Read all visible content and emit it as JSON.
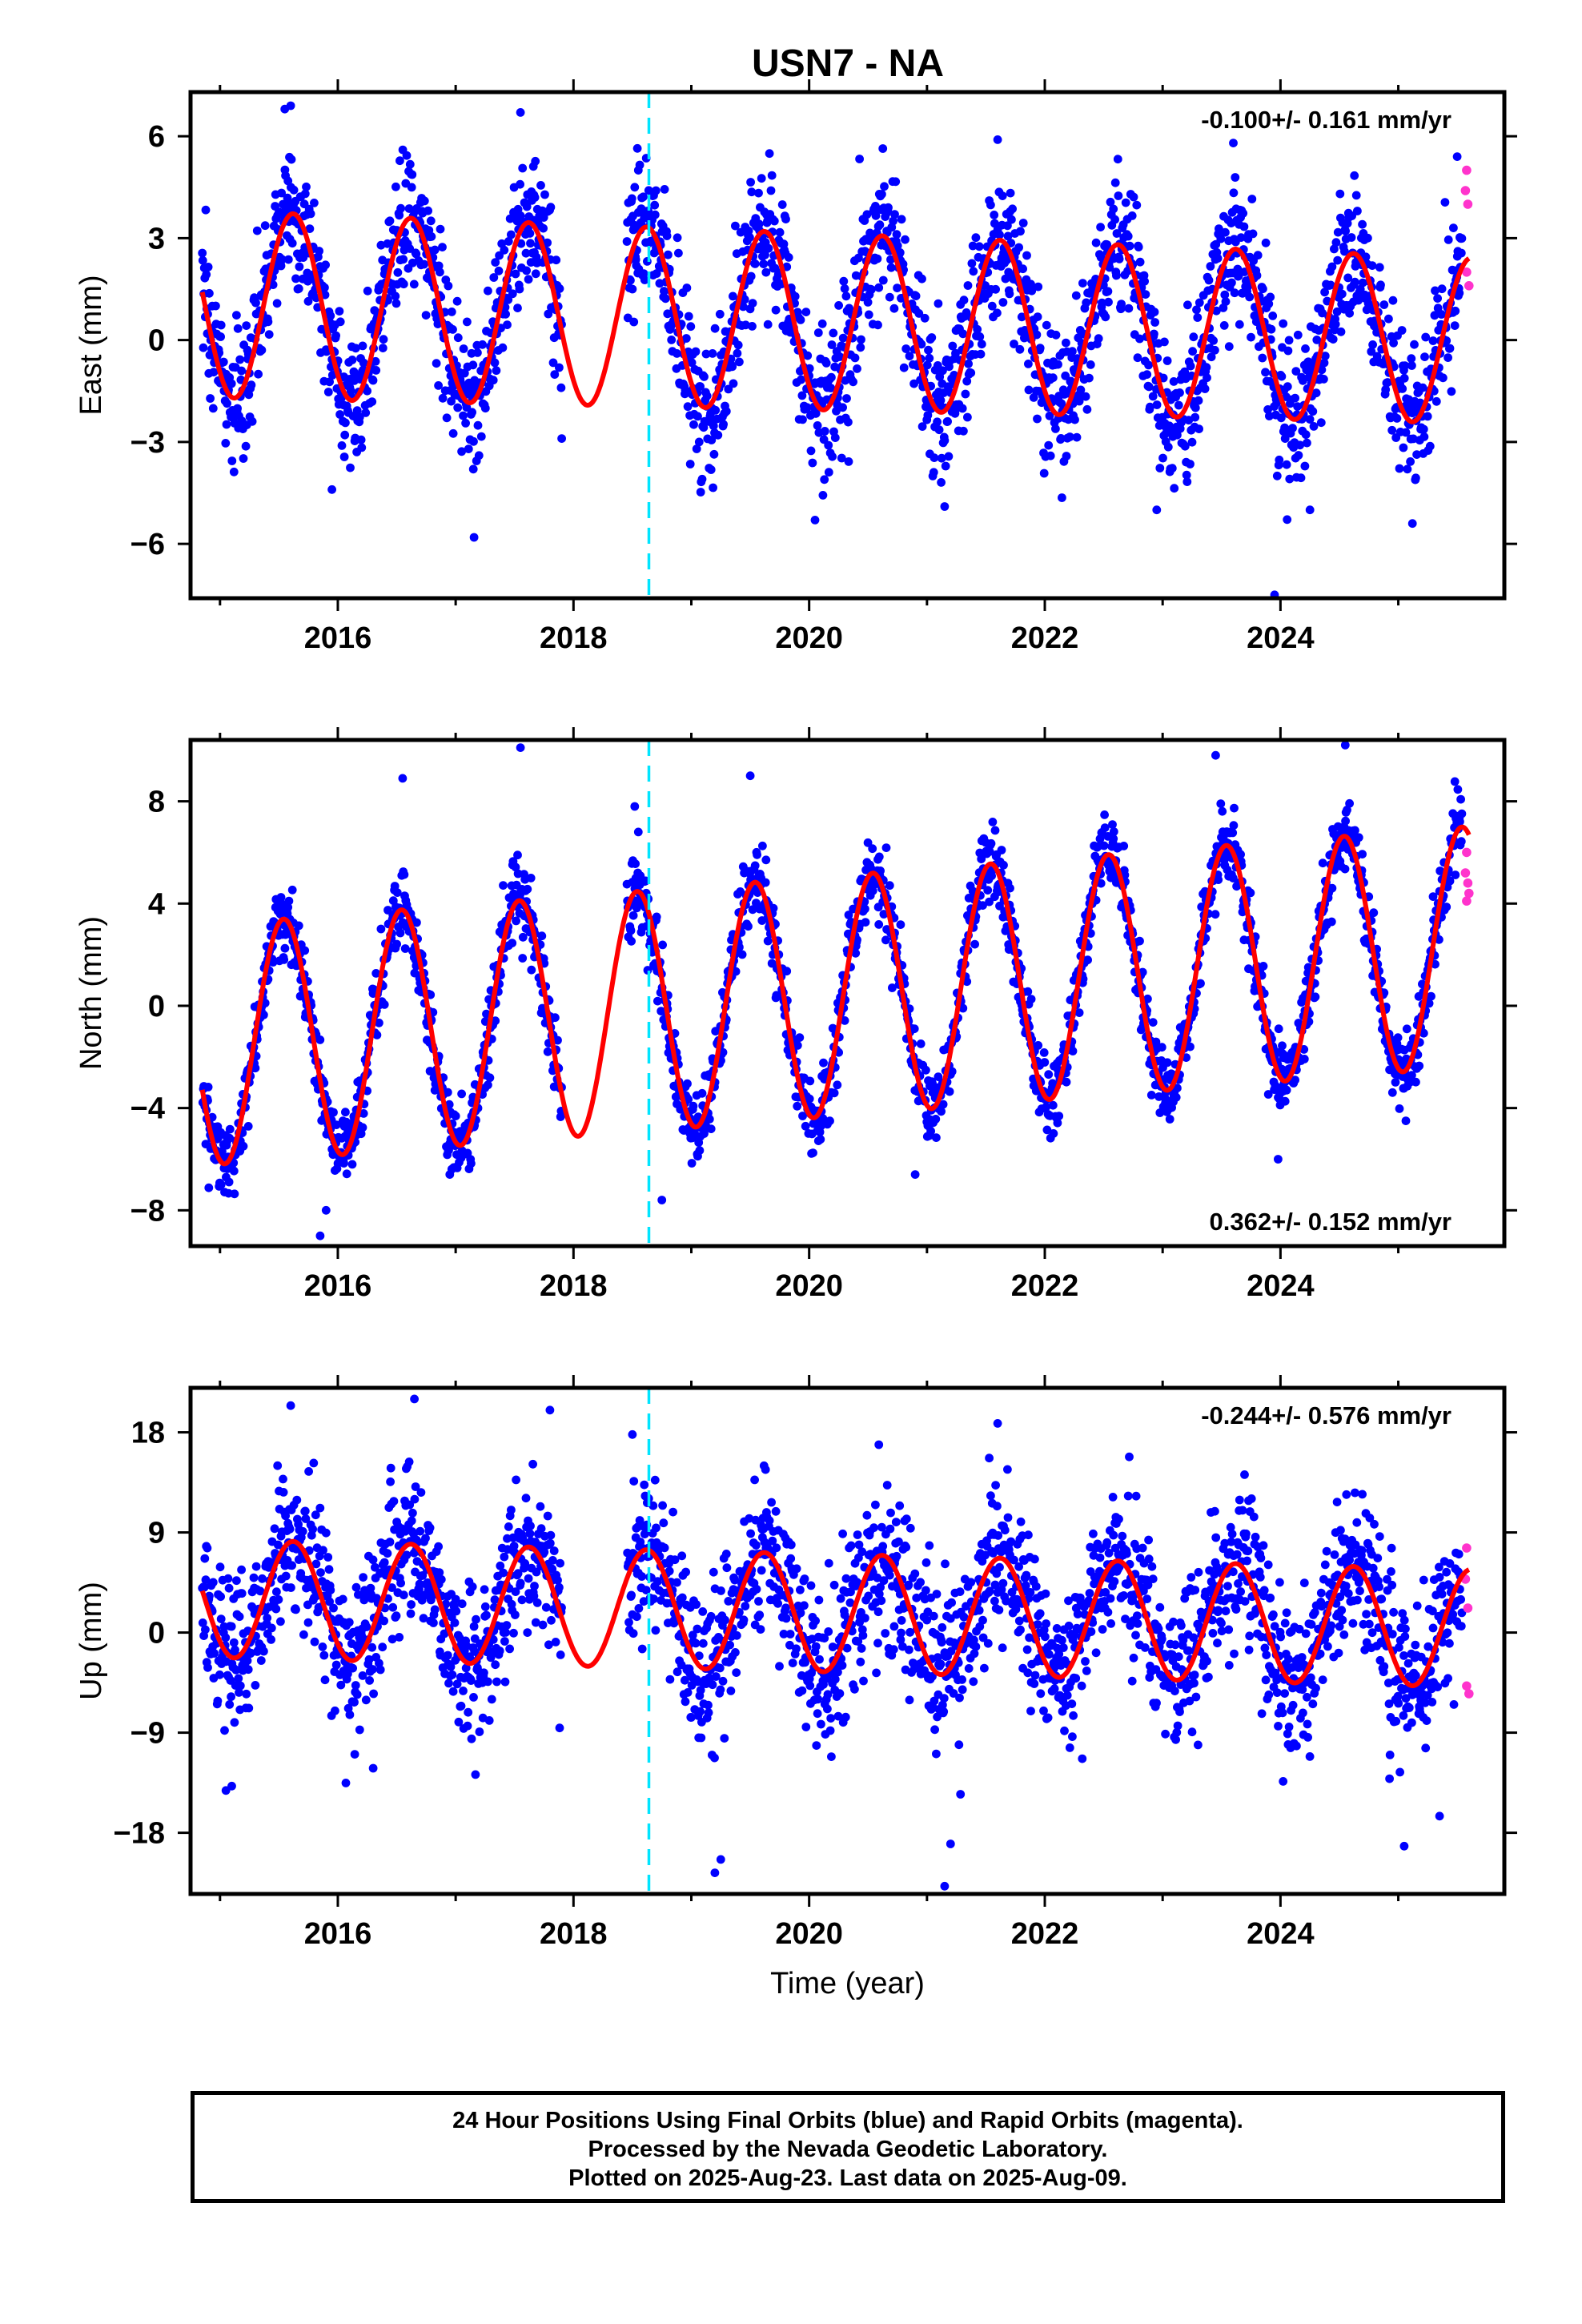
{
  "title": "USN7 - NA",
  "chart_data": [
    {
      "type": "scatter",
      "panel": "east",
      "ylabel": "East (mm)",
      "xlabel": "",
      "annotation": "-0.100+/- 0.161 mm/yr",
      "ylim": [
        -7.6,
        7.3
      ],
      "yticks": [
        -6,
        -3,
        0,
        3,
        6
      ],
      "ytick_labels": [
        "−6",
        "−3",
        "0",
        "3",
        "6"
      ],
      "xlim": [
        2014.75,
        2025.9
      ],
      "xticks": [
        2016,
        2018,
        2020,
        2022,
        2024
      ],
      "xtick_labels": [
        "2016",
        "2018",
        "2020",
        "2022",
        "2024"
      ],
      "data_start": 2014.85,
      "data_end": 2025.6,
      "gap": [
        2017.9,
        2018.45
      ],
      "rapid_start": 2025.54,
      "discontinuity": 2018.64,
      "series": [
        {
          "color": "#0000ff",
          "kind": "final-orbits"
        },
        {
          "color": "#ff33cc",
          "kind": "rapid-orbits"
        },
        {
          "color": "#ff0000",
          "kind": "model-fit"
        }
      ],
      "model": {
        "offset": 0.55,
        "trend": -0.1,
        "amplitude": 2.6,
        "amplitude_trend": -0.03,
        "peak_phase": 0.62,
        "scatter": 1.05
      },
      "points": [
        [
          2015.6,
          6.9
        ],
        [
          2015.55,
          6.8
        ],
        [
          2017.55,
          6.7
        ],
        [
          2023.6,
          5.8
        ],
        [
          2021.6,
          5.9
        ],
        [
          2025.5,
          5.4
        ],
        [
          2015.95,
          -4.4
        ],
        [
          2017.15,
          -3.8
        ],
        [
          2020.05,
          -5.3
        ],
        [
          2021.15,
          -4.9
        ],
        [
          2022.95,
          -5.0
        ],
        [
          2024.25,
          -5.0
        ],
        [
          2025.12,
          -5.4
        ],
        [
          2023.95,
          -7.5
        ],
        [
          2017.9,
          -2.9
        ],
        [
          2018.55,
          5.0
        ],
        [
          2018.52,
          4.5
        ],
        [
          2018.6,
          3.8
        ],
        [
          2018.7,
          4.4
        ],
        [
          2025.58,
          5.0
        ],
        [
          2025.57,
          4.4
        ],
        [
          2025.59,
          4.0
        ],
        [
          2025.58,
          2.0
        ],
        [
          2025.6,
          1.6
        ]
      ]
    },
    {
      "type": "scatter",
      "panel": "north",
      "ylabel": "North (mm)",
      "xlabel": "",
      "annotation": "0.362+/- 0.152 mm/yr",
      "ylim": [
        -9.4,
        10.4
      ],
      "yticks": [
        -8,
        -4,
        0,
        4,
        8
      ],
      "ytick_labels": [
        "−8",
        "−4",
        "0",
        "4",
        "8"
      ],
      "xlim": [
        2014.75,
        2025.9
      ],
      "xticks": [
        2016,
        2018,
        2020,
        2022,
        2024
      ],
      "xtick_labels": [
        "2016",
        "2018",
        "2020",
        "2022",
        "2024"
      ],
      "data_start": 2014.85,
      "data_end": 2025.6,
      "gap": [
        2017.9,
        2018.45
      ],
      "rapid_start": 2025.54,
      "discontinuity": 2018.64,
      "series": [
        {
          "color": "#0000ff",
          "kind": "final-orbits"
        },
        {
          "color": "#ff33cc",
          "kind": "rapid-orbits"
        },
        {
          "color": "#ff0000",
          "kind": "model-fit"
        }
      ],
      "model": {
        "offset": 0.3,
        "trend": 0.36,
        "amplitude": 4.7,
        "amplitude_trend": 0.0,
        "peak_phase": 0.54,
        "scatter": 0.75
      },
      "points": [
        [
          2017.55,
          10.1
        ],
        [
          2024.55,
          10.2
        ],
        [
          2016.55,
          8.9
        ],
        [
          2019.5,
          9.0
        ],
        [
          2023.45,
          9.8
        ],
        [
          2015.85,
          -9.0
        ],
        [
          2015.9,
          -8.0
        ],
        [
          2018.75,
          -7.6
        ],
        [
          2016.95,
          -6.6
        ],
        [
          2020.9,
          -6.6
        ],
        [
          2023.98,
          -6.0
        ],
        [
          2018.52,
          7.8
        ],
        [
          2018.55,
          6.8
        ],
        [
          2025.58,
          6.0
        ],
        [
          2025.57,
          5.2
        ],
        [
          2025.59,
          4.8
        ],
        [
          2025.6,
          4.4
        ],
        [
          2025.58,
          4.1
        ]
      ]
    },
    {
      "type": "scatter",
      "panel": "up",
      "ylabel": "Up (mm)",
      "xlabel": "Time (year)",
      "annotation": "-0.244+/- 0.576 mm/yr",
      "ylim": [
        -23.5,
        22.0
      ],
      "yticks": [
        -18,
        -9,
        0,
        9,
        18
      ],
      "ytick_labels": [
        "−18",
        "−9",
        "0",
        "9",
        "18"
      ],
      "xlim": [
        2014.75,
        2025.9
      ],
      "xticks": [
        2016,
        2018,
        2020,
        2022,
        2024
      ],
      "xtick_labels": [
        "2016",
        "2018",
        "2020",
        "2022",
        "2024"
      ],
      "data_start": 2014.85,
      "data_end": 2025.6,
      "gap": [
        2017.9,
        2018.45
      ],
      "rapid_start": 2025.54,
      "discontinuity": 2018.64,
      "series": [
        {
          "color": "#0000ff",
          "kind": "final-orbits"
        },
        {
          "color": "#ff33cc",
          "kind": "rapid-orbits"
        },
        {
          "color": "#ff0000",
          "kind": "model-fit"
        }
      ],
      "model": {
        "offset": 1.8,
        "trend": -0.25,
        "amplitude": 5.3,
        "amplitude_trend": 0.0,
        "peak_phase": 0.62,
        "scatter": 3.4
      },
      "points": [
        [
          2016.65,
          21.0
        ],
        [
          2015.6,
          20.4
        ],
        [
          2017.8,
          20.0
        ],
        [
          2018.5,
          17.8
        ],
        [
          2021.6,
          18.8
        ],
        [
          2015.1,
          -13.8
        ],
        [
          2015.05,
          -14.2
        ],
        [
          2016.3,
          -12.2
        ],
        [
          2019.25,
          -20.4
        ],
        [
          2019.2,
          -21.6
        ],
        [
          2021.15,
          -22.8
        ],
        [
          2021.2,
          -19.0
        ],
        [
          2025.05,
          -19.2
        ],
        [
          2025.35,
          -16.5
        ],
        [
          2025.58,
          7.6
        ],
        [
          2025.57,
          4.8
        ],
        [
          2025.59,
          2.2
        ],
        [
          2025.58,
          -4.8
        ],
        [
          2025.6,
          -5.5
        ]
      ]
    }
  ],
  "footer": {
    "line1": "24 Hour Positions Using Final Orbits (blue) and Rapid Orbits (magenta).",
    "line2": "Processed by the Nevada Geodetic Laboratory.",
    "line3": "Plotted on 2025-Aug-23. Last data on 2025-Aug-09."
  }
}
